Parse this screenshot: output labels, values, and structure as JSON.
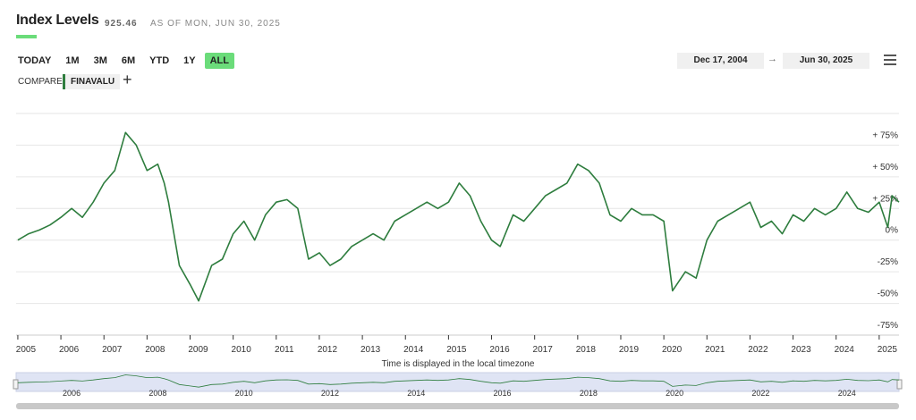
{
  "header": {
    "value": "925.46",
    "as_of": "AS OF MON, JUN 30, 2025"
  },
  "ranges": [
    "TODAY",
    "1M",
    "3M",
    "6M",
    "YTD",
    "1Y",
    "ALL"
  ],
  "selected_range": "ALL",
  "date_from": "Dec 17, 2004",
  "date_arrow": "→",
  "date_to": "Jun 30, 2025",
  "compare_label": "COMPARE",
  "compare_add": "+",
  "chart_data": {
    "type": "line",
    "title": "Index Levels",
    "x_note": "Time is displayed in the local timezone",
    "x": [
      2005.0,
      2005.25,
      2005.5,
      2005.75,
      2006.0,
      2006.25,
      2006.5,
      2006.75,
      2007.0,
      2007.25,
      2007.5,
      2007.75,
      2008.0,
      2008.25,
      2008.4,
      2008.5,
      2008.75,
      2009.0,
      2009.2,
      2009.5,
      2009.75,
      2010.0,
      2010.25,
      2010.5,
      2010.75,
      2011.0,
      2011.25,
      2011.5,
      2011.75,
      2012.0,
      2012.25,
      2012.5,
      2012.75,
      2013.0,
      2013.25,
      2013.5,
      2013.75,
      2014.0,
      2014.25,
      2014.5,
      2014.75,
      2015.0,
      2015.25,
      2015.5,
      2015.75,
      2016.0,
      2016.2,
      2016.5,
      2016.75,
      2017.0,
      2017.25,
      2017.5,
      2017.75,
      2018.0,
      2018.25,
      2018.5,
      2018.75,
      2019.0,
      2019.25,
      2019.5,
      2019.75,
      2020.0,
      2020.2,
      2020.5,
      2020.75,
      2021.0,
      2021.25,
      2021.5,
      2021.75,
      2022.0,
      2022.25,
      2022.5,
      2022.75,
      2023.0,
      2023.25,
      2023.5,
      2023.75,
      2024.0,
      2024.25,
      2024.5,
      2024.75,
      2025.0,
      2025.2,
      2025.3,
      2025.46
    ],
    "series": [
      {
        "name": "FINAVALU",
        "color": "#2e7d3e",
        "values": [
          0,
          5,
          8,
          12,
          18,
          25,
          18,
          30,
          45,
          55,
          85,
          75,
          55,
          60,
          45,
          30,
          -20,
          -35,
          -48,
          -20,
          -15,
          5,
          15,
          0,
          20,
          30,
          32,
          25,
          -15,
          -10,
          -20,
          -15,
          -5,
          0,
          5,
          0,
          15,
          20,
          25,
          30,
          25,
          30,
          45,
          35,
          15,
          0,
          -5,
          20,
          15,
          25,
          35,
          40,
          45,
          60,
          55,
          45,
          20,
          15,
          25,
          20,
          20,
          15,
          -40,
          -25,
          -30,
          0,
          15,
          20,
          25,
          30,
          10,
          15,
          5,
          20,
          15,
          25,
          20,
          25,
          38,
          25,
          22,
          30,
          10,
          35,
          30
        ]
      }
    ],
    "xlim": [
      2004.96,
      2025.46
    ],
    "xticks": [
      2005,
      2006,
      2007,
      2008,
      2009,
      2010,
      2011,
      2012,
      2013,
      2014,
      2015,
      2016,
      2017,
      2018,
      2019,
      2020,
      2021,
      2022,
      2023,
      2024,
      2025
    ],
    "ylim": [
      -75,
      100
    ],
    "yticks": [
      {
        "value": 75,
        "label": "+ 75%"
      },
      {
        "value": 50,
        "label": "+ 50%"
      },
      {
        "value": 25,
        "label": "+ 25%"
      },
      {
        "value": 0,
        "label": "0%"
      },
      {
        "value": -25,
        "label": "-25%"
      },
      {
        "value": -50,
        "label": "-50%"
      },
      {
        "value": -75,
        "label": "-75%"
      }
    ],
    "grid": true
  }
}
